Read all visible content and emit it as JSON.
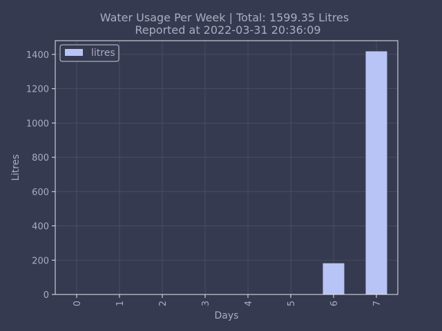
{
  "chart_data": {
    "type": "bar",
    "title_line1": "Water Usage Per Week | Total: 1599.35 Litres",
    "title_line2": "Reported at 2022-03-31 20:36:09",
    "xlabel": "Days",
    "ylabel": "Litres",
    "categories": [
      "0",
      "1",
      "2",
      "3",
      "4",
      "5",
      "6",
      "7"
    ],
    "series": [
      {
        "name": "litres",
        "values": [
          0,
          0,
          0,
          0,
          0,
          0,
          182,
          1418
        ]
      }
    ],
    "ylim": [
      0,
      1480
    ],
    "yticks": [
      0,
      200,
      400,
      600,
      800,
      1000,
      1200,
      1400
    ],
    "grid": true,
    "legend_position": "top-left",
    "colors": {
      "background": "#363a50",
      "bar": "#b7c4f5",
      "text": "#a9adc1",
      "axis": "#e8e8f0",
      "grid": "#4a5268"
    }
  }
}
